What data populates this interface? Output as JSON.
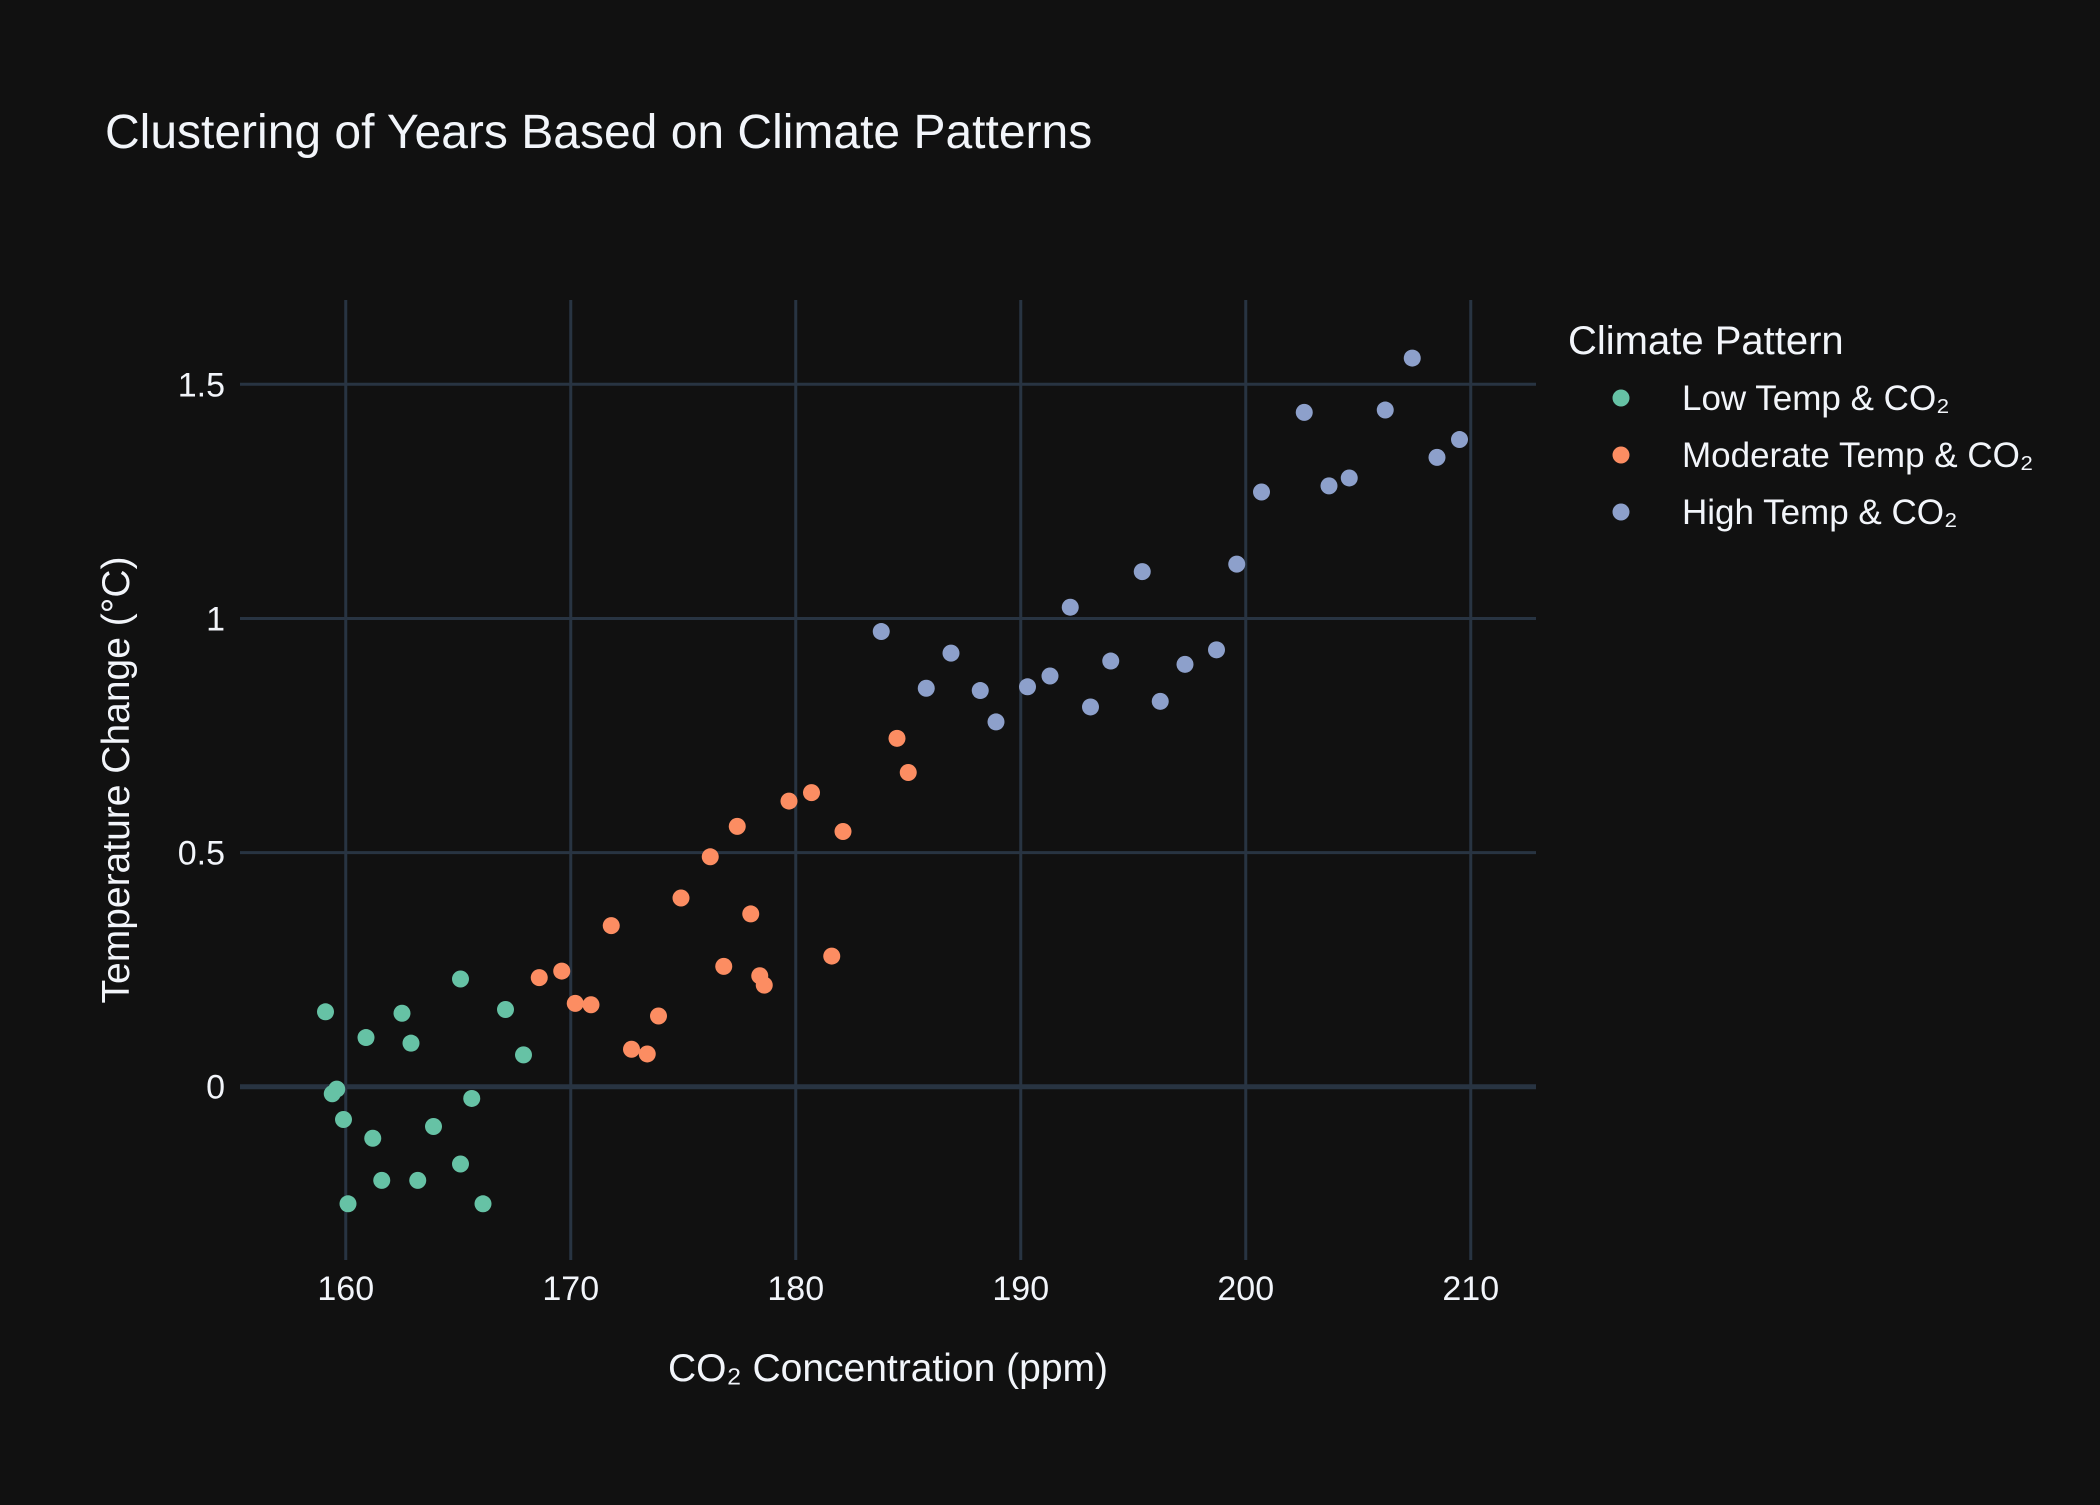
{
  "chart_data": {
    "type": "scatter",
    "title": "Clustering of Years Based on Climate Patterns",
    "xlabel": "CO₂ Concentration (ppm)",
    "ylabel": "Temperature Change (°C)",
    "xlim": [
      155.3,
      212.9
    ],
    "ylim": [
      -0.37,
      1.68
    ],
    "xticks": [
      160,
      170,
      180,
      190,
      200,
      210
    ],
    "xtick_labels": [
      "160",
      "170",
      "180",
      "190",
      "200",
      "210"
    ],
    "yticks": [
      0,
      0.5,
      1,
      1.5
    ],
    "ytick_labels": [
      "0",
      "0.5",
      "1",
      "1.5"
    ],
    "grid": true,
    "legend": {
      "title": "Climate Pattern",
      "placement": "top-right, outside plot area"
    },
    "series": [
      {
        "name": "Low Temp & CO₂",
        "color": "#66c2a5",
        "points": [
          [
            159.1,
            0.16
          ],
          [
            159.4,
            -0.015
          ],
          [
            159.6,
            -0.005
          ],
          [
            159.9,
            -0.07
          ],
          [
            160.1,
            -0.25
          ],
          [
            160.9,
            0.105
          ],
          [
            161.2,
            -0.11
          ],
          [
            161.6,
            -0.2
          ],
          [
            162.5,
            0.157
          ],
          [
            162.9,
            0.093
          ],
          [
            163.2,
            -0.2
          ],
          [
            163.9,
            -0.085
          ],
          [
            165.1,
            0.23
          ],
          [
            165.1,
            -0.165
          ],
          [
            165.6,
            -0.025
          ],
          [
            166.1,
            -0.25
          ],
          [
            167.1,
            0.165
          ],
          [
            167.9,
            0.068
          ]
        ]
      },
      {
        "name": "Moderate Temp & CO₂",
        "color": "#fc8d62",
        "points": [
          [
            168.6,
            0.233
          ],
          [
            169.6,
            0.247
          ],
          [
            170.2,
            0.178
          ],
          [
            170.9,
            0.175
          ],
          [
            171.8,
            0.344
          ],
          [
            172.7,
            0.08
          ],
          [
            173.4,
            0.07
          ],
          [
            173.9,
            0.151
          ],
          [
            174.9,
            0.403
          ],
          [
            176.2,
            0.491
          ],
          [
            176.8,
            0.257
          ],
          [
            177.4,
            0.556
          ],
          [
            178.0,
            0.369
          ],
          [
            178.4,
            0.237
          ],
          [
            178.6,
            0.217
          ],
          [
            179.7,
            0.61
          ],
          [
            180.7,
            0.628
          ],
          [
            181.6,
            0.279
          ],
          [
            182.1,
            0.545
          ],
          [
            184.5,
            0.744
          ],
          [
            185.0,
            0.671
          ]
        ]
      },
      {
        "name": "High Temp & CO₂",
        "color": "#8da0cb",
        "points": [
          [
            183.8,
            0.972
          ],
          [
            185.8,
            0.851
          ],
          [
            186.9,
            0.926
          ],
          [
            188.2,
            0.846
          ],
          [
            188.9,
            0.779
          ],
          [
            190.3,
            0.854
          ],
          [
            191.3,
            0.877
          ],
          [
            192.2,
            1.024
          ],
          [
            193.1,
            0.811
          ],
          [
            194.0,
            0.909
          ],
          [
            195.4,
            1.1
          ],
          [
            196.2,
            0.823
          ],
          [
            197.3,
            0.902
          ],
          [
            198.7,
            0.933
          ],
          [
            199.6,
            1.116
          ],
          [
            200.7,
            1.27
          ],
          [
            202.6,
            1.44
          ],
          [
            203.7,
            1.283
          ],
          [
            204.6,
            1.3
          ],
          [
            206.2,
            1.445
          ],
          [
            207.4,
            1.556
          ],
          [
            208.5,
            1.344
          ],
          [
            209.5,
            1.382
          ]
        ]
      }
    ]
  }
}
